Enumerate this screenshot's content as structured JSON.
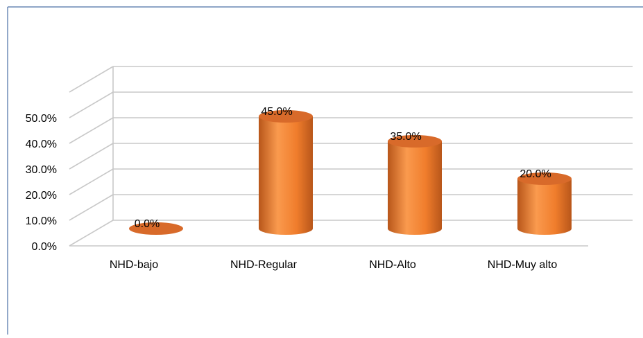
{
  "chart_data": {
    "type": "bar",
    "style": "3d-cylinder",
    "categories": [
      "NHD-bajo",
      "NHD-Regular",
      "NHD-Alto",
      "NHD-Muy alto"
    ],
    "values": [
      0.0,
      45.0,
      35.0,
      20.0
    ],
    "data_labels": [
      "0.0%",
      "45.0%",
      "35.0%",
      "20.0%"
    ],
    "y_tick_labels": [
      "0.0%",
      "10.0%",
      "20.0%",
      "30.0%",
      "40.0%",
      "50.0%"
    ],
    "ylim": [
      0,
      50
    ],
    "grid": true,
    "legend": "none",
    "colors": {
      "bar": "#f07d2c",
      "bar_light": "#fa9a4e",
      "bar_dark": "#b8561a",
      "bar_top": "#d86a2a",
      "grid": "#c8c8c8",
      "frame": "#4a6fa5"
    }
  }
}
